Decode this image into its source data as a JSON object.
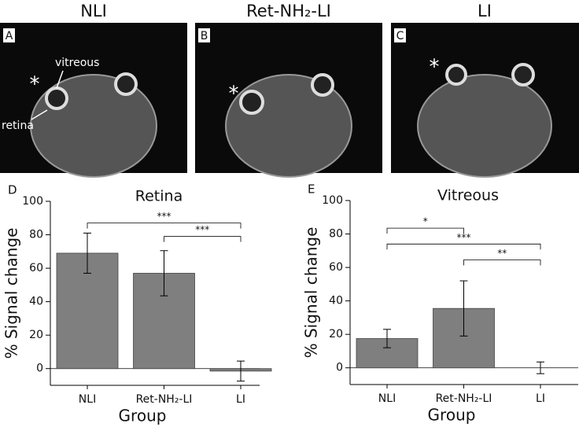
{
  "panels": [
    {
      "letter": "A",
      "title": "NLI",
      "labels": [
        "vitreous",
        "retina",
        "*"
      ]
    },
    {
      "letter": "B",
      "title": "Ret-NH₂-LI",
      "labels": [
        "*"
      ]
    },
    {
      "letter": "C",
      "title": "LI",
      "labels": [
        "*"
      ]
    }
  ],
  "chart_data": [
    {
      "type": "bar",
      "letter": "D",
      "title": "Retina",
      "x_label": "Group",
      "y_label": "% Signal change",
      "categories": [
        "NLI",
        "Ret-NH₂-LI",
        "LI"
      ],
      "values": [
        69,
        57,
        -1.5
      ],
      "errors": [
        12,
        13.5,
        6
      ],
      "color": "#7f7f7f",
      "ylim": [
        -10,
        100
      ],
      "yticks": [
        0,
        20,
        40,
        60,
        80,
        100
      ],
      "annotations": [
        {
          "from": 0,
          "to": 2,
          "y": 87,
          "label": "***"
        },
        {
          "from": 1,
          "to": 2,
          "y": 79,
          "label": "***"
        }
      ]
    },
    {
      "type": "bar",
      "letter": "E",
      "title": "Vitreous",
      "x_label": "Group",
      "y_label": "% Signal change",
      "categories": [
        "NLI",
        "Ret-NH₂-LI",
        "LI"
      ],
      "values": [
        17.5,
        35.5,
        0
      ],
      "errors": [
        5.5,
        16.5,
        3.5
      ],
      "color": "#7f7f7f",
      "ylim": [
        -10,
        100
      ],
      "yticks": [
        0,
        20,
        40,
        60,
        80,
        100
      ],
      "annotations": [
        {
          "from": 0,
          "to": 1,
          "y": 83.5,
          "label": "*"
        },
        {
          "from": 0,
          "to": 2,
          "y": 74,
          "label": "***"
        },
        {
          "from": 1,
          "to": 2,
          "y": 64.5,
          "label": "**"
        }
      ]
    }
  ]
}
